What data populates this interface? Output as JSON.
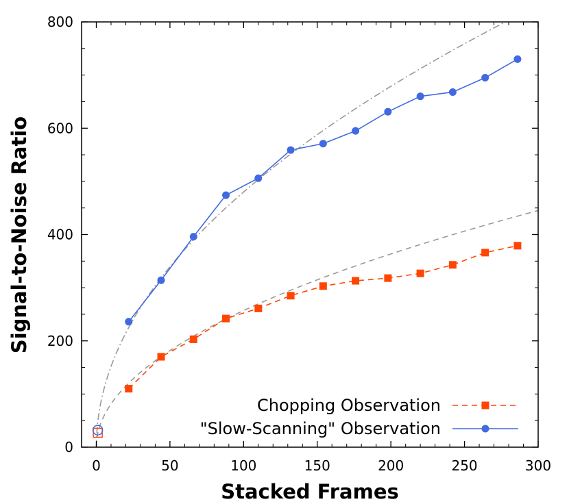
{
  "chart_data": {
    "type": "line",
    "title": "",
    "xlabel": "Stacked Frames",
    "ylabel": "Signal-to-Noise Ratio",
    "xlim": [
      -10,
      300
    ],
    "ylim": [
      0,
      800
    ],
    "xticks": [
      0,
      50,
      100,
      150,
      200,
      250,
      300
    ],
    "yticks": [
      0,
      200,
      400,
      600,
      800
    ],
    "grid": false,
    "legend_position": "bottom-right",
    "series": [
      {
        "name": "Chopping Observation",
        "color": "#ff4500",
        "marker": "square",
        "line_style": "dashed",
        "x": [
          22,
          44,
          66,
          88,
          110,
          132,
          154,
          176,
          198,
          220,
          242,
          264,
          286
        ],
        "y": [
          110,
          170,
          203,
          242,
          261,
          285,
          303,
          313,
          318,
          327,
          343,
          366,
          379
        ]
      },
      {
        "name": "\"Slow-Scanning\" Observation",
        "color": "#4169e1",
        "marker": "circle",
        "line_style": "solid",
        "x": [
          22,
          44,
          66,
          88,
          110,
          132,
          154,
          176,
          198,
          220,
          242,
          264,
          286
        ],
        "y": [
          236,
          314,
          396,
          474,
          506,
          559,
          571,
          595,
          631,
          660,
          668,
          695,
          730
        ]
      }
    ],
    "single_frame_markers": [
      {
        "shape": "hollow-square",
        "color": "#ff4500",
        "x": 1,
        "y": 27
      },
      {
        "shape": "hollow-circle",
        "color": "#4169e1",
        "x": 1,
        "y": 32
      }
    ],
    "reference_curves": [
      {
        "style": "dash-dot",
        "color": "#999999",
        "function": "sqrt",
        "coefficient": 48
      },
      {
        "style": "dashed",
        "color": "#999999",
        "function": "sqrt",
        "coefficient": 25.7
      }
    ]
  }
}
